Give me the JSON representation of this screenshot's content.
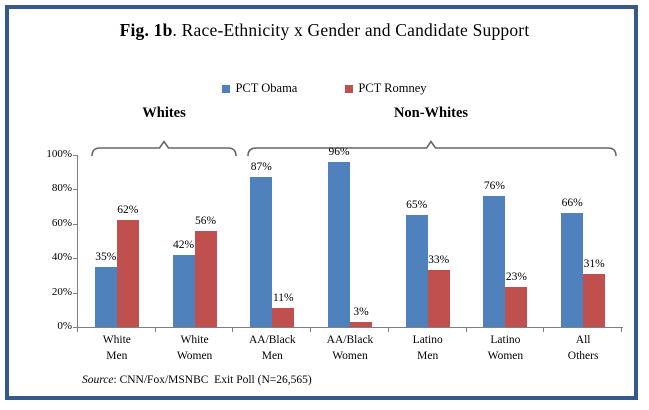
{
  "title": {
    "prefix": "Fig. 1b",
    "rest": ". Race-Ethnicity x Gender and Candidate Support"
  },
  "source": {
    "label": "Source",
    "rest": ": CNN/Fox/MSNBC  Exit Poll (N=26,565)"
  },
  "chart_data": {
    "type": "bar",
    "title": "Fig. 1b. Race-Ethnicity x Gender and Candidate Support",
    "categories": [
      {
        "line1": "White",
        "line2": "Men"
      },
      {
        "line1": "White",
        "line2": "Women"
      },
      {
        "line1": "AA/Black",
        "line2": "Men"
      },
      {
        "line1": "AA/Black",
        "line2": "Women"
      },
      {
        "line1": "Latino",
        "line2": "Men"
      },
      {
        "line1": "Latino",
        "line2": "Women"
      },
      {
        "line1": "All",
        "line2": "Others"
      }
    ],
    "series": [
      {
        "name": "PCT Obama",
        "color": "#4F81BD",
        "values": [
          35,
          42,
          87,
          96,
          65,
          76,
          66
        ]
      },
      {
        "name": "PCT Romney",
        "color": "#C0504D",
        "values": [
          62,
          56,
          11,
          3,
          33,
          23,
          31
        ]
      }
    ],
    "group_annotations": [
      {
        "label": "Whites",
        "span": [
          0,
          1
        ]
      },
      {
        "label": "Non-Whites",
        "span": [
          2,
          6
        ]
      }
    ],
    "y_ticks": [
      "0%",
      "20%",
      "40%",
      "60%",
      "80%",
      "100%"
    ],
    "ylim": [
      0,
      100
    ],
    "ylabel": "",
    "xlabel": "",
    "data_labels": true,
    "grid": false,
    "legend_position": "top",
    "source": "Source: CNN/Fox/MSNBC  Exit Poll (N=26,565)"
  },
  "colors": {
    "frame_border": "#36598C",
    "axis": "#808080",
    "brace": "#666666",
    "obama_blue": "#4F81BD",
    "romney_red": "#C0504D"
  }
}
